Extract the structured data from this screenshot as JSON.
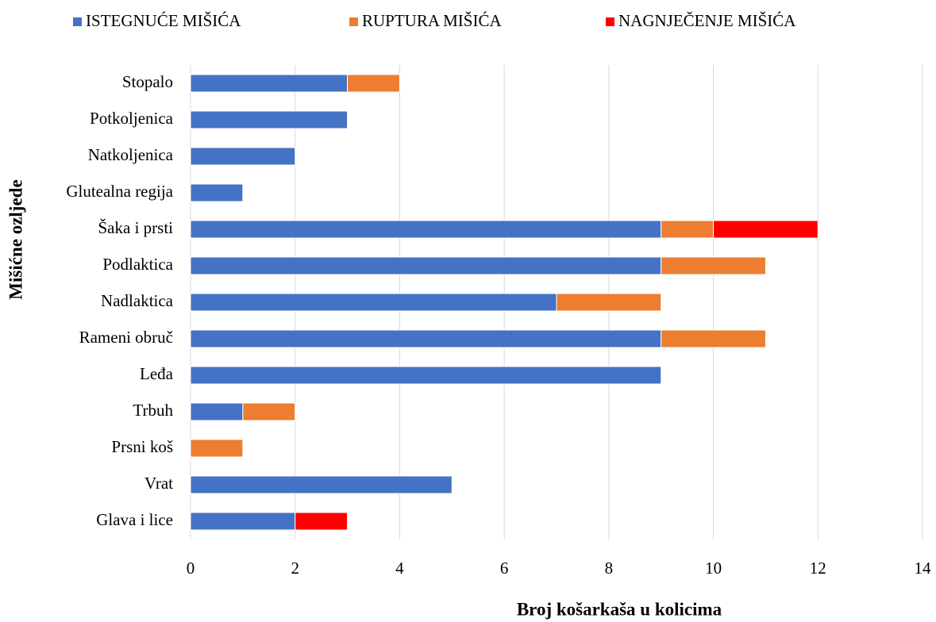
{
  "chart_data": {
    "type": "stacked_bar_horizontal",
    "xlabel": "Broj košarkaša u kolicima",
    "ylabel": "Mišićne ozljede",
    "categories": [
      "Stopalo",
      "Potkoljenica",
      "Natkoljenica",
      "Glutealna regija",
      "Šaka i prsti",
      "Podlaktica",
      "Nadlaktica",
      "Rameni obruč",
      "Leđa",
      "Trbuh",
      "Prsni koš",
      "Vrat",
      "Glava i lice"
    ],
    "series": [
      {
        "name": "ISTEGNUĆE MIŠIĆA",
        "color": "#4472c4",
        "values": [
          3,
          3,
          2,
          1,
          9,
          9,
          7,
          9,
          9,
          1,
          0,
          5,
          2
        ]
      },
      {
        "name": "RUPTURA MIŠIĆA",
        "color": "#ed7d31",
        "values": [
          1,
          0,
          0,
          0,
          1,
          2,
          2,
          2,
          0,
          1,
          1,
          0,
          0
        ]
      },
      {
        "name": "NAGNJEČENJE MIŠIĆA",
        "color": "#ff0000",
        "values": [
          0,
          0,
          0,
          0,
          2,
          0,
          0,
          0,
          0,
          0,
          0,
          0,
          1
        ]
      }
    ],
    "xlim": [
      0,
      14
    ],
    "xticks": [
      0,
      2,
      4,
      6,
      8,
      10,
      12,
      14
    ],
    "grid": true,
    "legend": "top"
  }
}
